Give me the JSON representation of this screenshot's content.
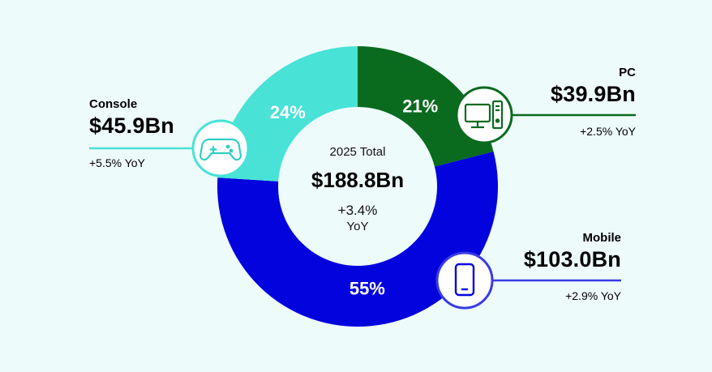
{
  "chart_data": {
    "type": "pie",
    "donut": true,
    "center": {
      "label": "2025 Total",
      "value": "$188.8Bn",
      "yoy": "+3.4%",
      "yoy_word": "YoY"
    },
    "slices": [
      {
        "name": "PC",
        "percent": 21,
        "percent_label": "21%",
        "value": "$39.9Bn",
        "yoy": "+2.5% YoY",
        "color": "#0a6b1f",
        "icon": "desktop-pc-icon"
      },
      {
        "name": "Mobile",
        "percent": 55,
        "percent_label": "55%",
        "value": "$103.0Bn",
        "yoy": "+2.9% YoY",
        "color": "#0303de",
        "icon": "smartphone-icon"
      },
      {
        "name": "Console",
        "percent": 24,
        "percent_label": "24%",
        "value": "$45.9Bn",
        "yoy": "+5.5% YoY",
        "color": "#48e2d6",
        "icon": "gamepad-icon"
      }
    ]
  },
  "colors": {
    "background": "#eefbfb",
    "hole": "#eefbfb",
    "pc": "#0a6b1f",
    "mobile": "#0303de",
    "console": "#48e2d6"
  }
}
